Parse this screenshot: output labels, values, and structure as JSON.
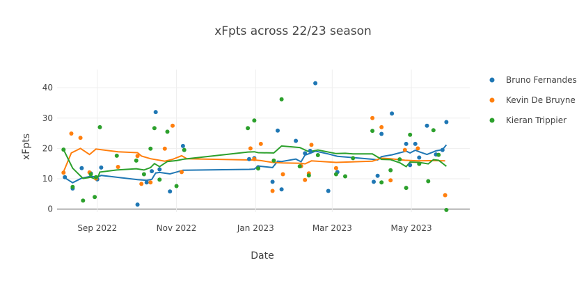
{
  "chart_data": {
    "type": "line",
    "title": "xFpts across 22/23 season",
    "xlabel": "Date",
    "ylabel": "xFpts",
    "x_ticks": [
      {
        "date": "2022-09-01",
        "label": "Sep 2022"
      },
      {
        "date": "2022-11-01",
        "label": "Nov 2022"
      },
      {
        "date": "2023-01-01",
        "label": "Jan 2023"
      },
      {
        "date": "2023-03-01",
        "label": "Mar 2023"
      },
      {
        "date": "2023-05-01",
        "label": "May 2023"
      }
    ],
    "y_ticks": [
      0,
      10,
      20,
      30,
      40
    ],
    "xlim": [
      "2022-08-01",
      "2023-06-15"
    ],
    "ylim": [
      -1,
      46
    ],
    "grid": true,
    "legend_position": "right",
    "series": [
      {
        "name": "Bruno Fernandes",
        "color": "#1f77b4",
        "points": [
          [
            "2022-08-07",
            10.5
          ],
          [
            "2022-08-13",
            6.8
          ],
          [
            "2022-08-20",
            13.5
          ],
          [
            "2022-08-27",
            11.8
          ],
          [
            "2022-09-01",
            9.8
          ],
          [
            "2022-09-04",
            13.7
          ],
          [
            "2022-10-02",
            1.5
          ],
          [
            "2022-10-09",
            8.8
          ],
          [
            "2022-10-13",
            12.5
          ],
          [
            "2022-10-16",
            32
          ],
          [
            "2022-10-19",
            13.1
          ],
          [
            "2022-10-27",
            5.8
          ],
          [
            "2022-11-06",
            20.8
          ],
          [
            "2022-12-27",
            16.5
          ],
          [
            "2022-12-31",
            16.8
          ],
          [
            "2023-01-03",
            13.8
          ],
          [
            "2023-01-14",
            9
          ],
          [
            "2023-01-18",
            25.9
          ],
          [
            "2023-01-21",
            6.5
          ],
          [
            "2023-02-01",
            22.5
          ],
          [
            "2023-02-05",
            14.2
          ],
          [
            "2023-02-08",
            18.4
          ],
          [
            "2023-02-12",
            19.2
          ],
          [
            "2023-02-16",
            41.5
          ],
          [
            "2023-02-26",
            6
          ],
          [
            "2023-03-05",
            12.2
          ],
          [
            "2023-04-02",
            9
          ],
          [
            "2023-04-05",
            11
          ],
          [
            "2023-04-08",
            24.8
          ],
          [
            "2023-04-16",
            31.5
          ],
          [
            "2023-04-27",
            21.5
          ],
          [
            "2023-04-30",
            14.5
          ],
          [
            "2023-05-04",
            21.5
          ],
          [
            "2023-05-07",
            17
          ],
          [
            "2023-05-13",
            27.5
          ],
          [
            "2023-05-20",
            18
          ],
          [
            "2023-05-25",
            19.5
          ],
          [
            "2023-05-28",
            28.7
          ]
        ],
        "trend": [
          [
            "2022-08-07",
            10.3
          ],
          [
            "2022-08-13",
            8.7
          ],
          [
            "2022-08-20",
            10.2
          ],
          [
            "2022-08-27",
            10.8
          ],
          [
            "2022-09-01",
            10.5
          ],
          [
            "2022-09-04",
            11.1
          ],
          [
            "2022-10-02",
            9.7
          ],
          [
            "2022-10-09",
            9.5
          ],
          [
            "2022-10-13",
            9.8
          ],
          [
            "2022-10-16",
            11.9
          ],
          [
            "2022-10-19",
            12.1
          ],
          [
            "2022-10-27",
            11.6
          ],
          [
            "2022-11-06",
            12.8
          ],
          [
            "2022-12-27",
            13.1
          ],
          [
            "2022-12-31",
            13.2
          ],
          [
            "2023-01-03",
            14.2
          ],
          [
            "2023-01-14",
            13.7
          ],
          [
            "2023-01-18",
            15.8
          ],
          [
            "2023-01-21",
            15.7
          ],
          [
            "2023-02-01",
            16.5
          ],
          [
            "2023-02-05",
            15.6
          ],
          [
            "2023-02-08",
            17.8
          ],
          [
            "2023-02-12",
            18.4
          ],
          [
            "2023-02-16",
            19.1
          ],
          [
            "2023-02-26",
            18.2
          ],
          [
            "2023-03-05",
            17.4
          ],
          [
            "2023-04-02",
            16.4
          ],
          [
            "2023-04-05",
            16.2
          ],
          [
            "2023-04-08",
            17.3
          ],
          [
            "2023-04-16",
            17.9
          ],
          [
            "2023-04-27",
            19.1
          ],
          [
            "2023-04-30",
            18.5
          ],
          [
            "2023-05-04",
            19.4
          ],
          [
            "2023-05-07",
            18.9
          ],
          [
            "2023-05-13",
            18
          ],
          [
            "2023-05-20",
            19.2
          ],
          [
            "2023-05-25",
            19.6
          ],
          [
            "2023-05-28",
            21.2
          ]
        ]
      },
      {
        "name": "Kevin De Bruyne",
        "color": "#ff7f0e",
        "points": [
          [
            "2022-08-06",
            12
          ],
          [
            "2022-08-12",
            24.9
          ],
          [
            "2022-08-19",
            23.5
          ],
          [
            "2022-08-26",
            12.1
          ],
          [
            "2022-08-31",
            10.1
          ],
          [
            "2022-09-17",
            13.9
          ],
          [
            "2022-10-02",
            17.5
          ],
          [
            "2022-10-05",
            8.3
          ],
          [
            "2022-10-12",
            8.8
          ],
          [
            "2022-10-23",
            19.9
          ],
          [
            "2022-10-29",
            27.5
          ],
          [
            "2022-11-05",
            12.2
          ],
          [
            "2022-12-28",
            20
          ],
          [
            "2022-12-31",
            16.5
          ],
          [
            "2023-01-05",
            21.5
          ],
          [
            "2023-01-14",
            6
          ],
          [
            "2023-01-22",
            11.5
          ],
          [
            "2023-02-05",
            14.2
          ],
          [
            "2023-02-08",
            9.6
          ],
          [
            "2023-02-11",
            11.8
          ],
          [
            "2023-02-13",
            21.2
          ],
          [
            "2023-03-04",
            13.5
          ],
          [
            "2023-04-01",
            30
          ],
          [
            "2023-04-08",
            27
          ],
          [
            "2023-04-15",
            9.5
          ],
          [
            "2023-04-26",
            19.5
          ],
          [
            "2023-05-06",
            20
          ],
          [
            "2023-05-27",
            4.6
          ]
        ],
        "trend": [
          [
            "2022-08-06",
            12.3
          ],
          [
            "2022-08-12",
            18.5
          ],
          [
            "2022-08-19",
            20
          ],
          [
            "2022-08-26",
            18
          ],
          [
            "2022-08-31",
            19.8
          ],
          [
            "2022-09-17",
            18.9
          ],
          [
            "2022-10-02",
            18.6
          ],
          [
            "2022-10-05",
            17.5
          ],
          [
            "2022-10-12",
            16.6
          ],
          [
            "2022-10-23",
            15.8
          ],
          [
            "2022-10-29",
            16.4
          ],
          [
            "2022-11-05",
            17.6
          ],
          [
            "2022-11-09",
            16.6
          ],
          [
            "2022-12-28",
            16.2
          ],
          [
            "2022-12-31",
            16.2
          ],
          [
            "2023-01-05",
            16
          ],
          [
            "2023-01-14",
            15.4
          ],
          [
            "2023-01-22",
            15.2
          ],
          [
            "2023-02-05",
            15.1
          ],
          [
            "2023-02-08",
            14.9
          ],
          [
            "2023-02-13",
            15.9
          ],
          [
            "2023-03-04",
            15.4
          ],
          [
            "2023-04-01",
            15.8
          ],
          [
            "2023-04-08",
            16.8
          ],
          [
            "2023-04-15",
            16.6
          ],
          [
            "2023-04-26",
            16.1
          ],
          [
            "2023-05-06",
            15.9
          ],
          [
            "2023-05-20",
            16
          ],
          [
            "2023-05-27",
            15.9
          ]
        ]
      },
      {
        "name": "Kieran Trippier",
        "color": "#2ca02c",
        "points": [
          [
            "2022-08-06",
            19.6
          ],
          [
            "2022-08-13",
            7.3
          ],
          [
            "2022-08-21",
            2.8
          ],
          [
            "2022-08-27",
            11.5
          ],
          [
            "2022-08-30",
            4
          ],
          [
            "2022-08-31",
            10.5
          ],
          [
            "2022-09-03",
            27
          ],
          [
            "2022-09-16",
            17.6
          ],
          [
            "2022-10-01",
            16
          ],
          [
            "2022-10-07",
            11.5
          ],
          [
            "2022-10-12",
            19.9
          ],
          [
            "2022-10-15",
            26.7
          ],
          [
            "2022-10-19",
            9.7
          ],
          [
            "2022-10-25",
            25.5
          ],
          [
            "2022-11-01",
            7.6
          ],
          [
            "2022-11-07",
            19.5
          ],
          [
            "2022-12-26",
            26.7
          ],
          [
            "2022-12-31",
            29.2
          ],
          [
            "2023-01-03",
            13.4
          ],
          [
            "2023-01-15",
            16
          ],
          [
            "2023-01-21",
            36.2
          ],
          [
            "2023-02-04",
            14.1
          ],
          [
            "2023-02-11",
            11.1
          ],
          [
            "2023-02-18",
            17.8
          ],
          [
            "2023-03-04",
            11.5
          ],
          [
            "2023-03-11",
            10.8
          ],
          [
            "2023-03-17",
            16.8
          ],
          [
            "2023-04-01",
            25.8
          ],
          [
            "2023-04-08",
            8.8
          ],
          [
            "2023-04-15",
            12.8
          ],
          [
            "2023-04-22",
            16.4
          ],
          [
            "2023-04-27",
            7
          ],
          [
            "2023-04-30",
            24.5
          ],
          [
            "2023-05-07",
            14.9
          ],
          [
            "2023-05-14",
            9.2
          ],
          [
            "2023-05-18",
            26
          ],
          [
            "2023-05-22",
            17.9
          ],
          [
            "2023-05-28",
            -0.3
          ]
        ],
        "trend": [
          [
            "2022-08-06",
            19.6
          ],
          [
            "2022-08-13",
            13.5
          ],
          [
            "2022-08-21",
            10.1
          ],
          [
            "2022-08-27",
            10.5
          ],
          [
            "2022-08-30",
            10
          ],
          [
            "2022-09-01",
            10
          ],
          [
            "2022-09-03",
            12.2
          ],
          [
            "2022-09-16",
            12.9
          ],
          [
            "2022-10-01",
            13.3
          ],
          [
            "2022-10-07",
            12.9
          ],
          [
            "2022-10-12",
            13.7
          ],
          [
            "2022-10-15",
            15
          ],
          [
            "2022-10-19",
            14
          ],
          [
            "2022-10-25",
            15.7
          ],
          [
            "2022-11-01",
            16
          ],
          [
            "2022-11-07",
            16.5
          ],
          [
            "2022-12-26",
            18.8
          ],
          [
            "2022-12-31",
            18.9
          ],
          [
            "2023-01-03",
            18.6
          ],
          [
            "2023-01-15",
            18.5
          ],
          [
            "2023-01-21",
            20.8
          ],
          [
            "2023-02-04",
            20.3
          ],
          [
            "2023-02-11",
            18.9
          ],
          [
            "2023-02-18",
            19.5
          ],
          [
            "2023-03-04",
            18.3
          ],
          [
            "2023-03-11",
            18.4
          ],
          [
            "2023-03-17",
            18.2
          ],
          [
            "2023-04-01",
            18.2
          ],
          [
            "2023-04-08",
            16.4
          ],
          [
            "2023-04-15",
            16.3
          ],
          [
            "2023-04-22",
            15.3
          ],
          [
            "2023-04-27",
            14
          ],
          [
            "2023-04-30",
            15.5
          ],
          [
            "2023-05-07",
            15.4
          ],
          [
            "2023-05-14",
            14.9
          ],
          [
            "2023-05-18",
            16.3
          ],
          [
            "2023-05-22",
            16.1
          ],
          [
            "2023-05-28",
            14.1
          ]
        ]
      }
    ]
  }
}
